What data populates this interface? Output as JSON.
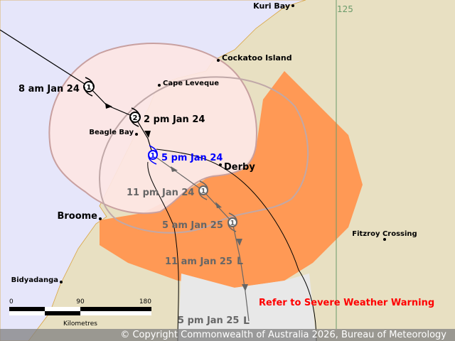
{
  "colors": {
    "sea": "#e6e6fa",
    "land": "#e8e0c2",
    "watch_zone": "#fde6e4",
    "warning_zone": "#ff9955",
    "forecast_area": "#e8e8e8",
    "past_track": "#000000",
    "forecast_track": "#666666",
    "current_position": "#0000ff",
    "warning_text": "#ff0000"
  },
  "places": [
    {
      "name": "Kuri Bay"
    },
    {
      "name": "Cockatoo Island"
    },
    {
      "name": "Cape Leveque"
    },
    {
      "name": "Beagle Bay"
    },
    {
      "name": "Derby"
    },
    {
      "name": "Broome"
    },
    {
      "name": "Fitzroy Crossing"
    },
    {
      "name": "Bidyadanga"
    }
  ],
  "longitude_label": "125",
  "track": {
    "past": [
      {
        "label": "8 am Jan 24",
        "category": "1"
      },
      {
        "label": "2 pm Jan 24",
        "category": "2"
      }
    ],
    "current": {
      "label": "5 pm Jan 24",
      "category": "1"
    },
    "forecast": [
      {
        "label": "11 pm Jan 24",
        "category": "1"
      },
      {
        "label": "5 am Jan 25",
        "category": "1"
      },
      {
        "label": "11 am Jan 25",
        "category": "L"
      },
      {
        "label": "5 pm Jan 25",
        "category": "L"
      }
    ]
  },
  "warning_note": "Refer to Severe Weather Warning",
  "scale": {
    "ticks": [
      "0",
      "90",
      "180"
    ],
    "unit": "Kilometres"
  },
  "copyright": "© Copyright Commonwealth of Australia 2026, Bureau of Meteorology"
}
